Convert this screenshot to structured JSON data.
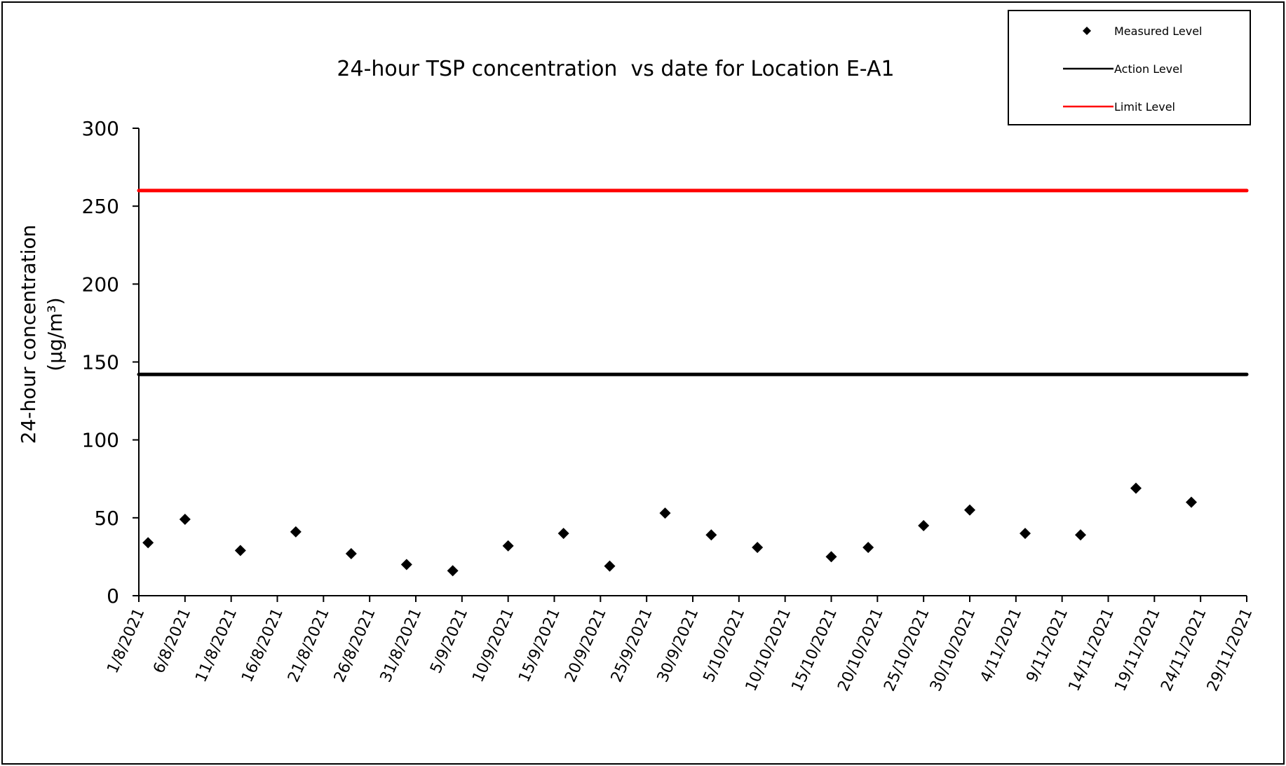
{
  "chart_data": {
    "type": "scatter",
    "title": "24-hour TSP concentration  vs date for Location E-A1",
    "ylabel": "24-hour concentration",
    "ylabel_unit": "(μg/m³)",
    "xlabel": "",
    "ylim": [
      0,
      300
    ],
    "yticks": [
      "0",
      "50",
      "100",
      "150",
      "200",
      "250",
      "300"
    ],
    "xlim": [
      "1/8/2021",
      "29/11/2021"
    ],
    "xticks": [
      "1/8/2021",
      "6/8/2021",
      "11/8/2021",
      "16/8/2021",
      "21/8/2021",
      "26/8/2021",
      "31/8/2021",
      "5/9/2021",
      "10/9/2021",
      "15/9/2021",
      "20/9/2021",
      "25/9/2021",
      "30/9/2021",
      "5/10/2021",
      "10/10/2021",
      "15/10/2021",
      "20/10/2021",
      "25/10/2021",
      "30/10/2021",
      "4/11/2021",
      "9/11/2021",
      "14/11/2021",
      "19/11/2021",
      "24/11/2021",
      "29/11/2021"
    ],
    "grid": false,
    "legend_position": "top-right",
    "series": [
      {
        "name": "Measured Level",
        "marker": "diamond",
        "color": "#000000",
        "points": [
          {
            "x": "2/8/2021",
            "y": 34
          },
          {
            "x": "6/8/2021",
            "y": 49
          },
          {
            "x": "12/8/2021",
            "y": 29
          },
          {
            "x": "18/8/2021",
            "y": 41
          },
          {
            "x": "24/8/2021",
            "y": 27
          },
          {
            "x": "30/8/2021",
            "y": 20
          },
          {
            "x": "4/9/2021",
            "y": 16
          },
          {
            "x": "10/9/2021",
            "y": 32
          },
          {
            "x": "16/9/2021",
            "y": 40
          },
          {
            "x": "21/9/2021",
            "y": 19
          },
          {
            "x": "27/9/2021",
            "y": 53
          },
          {
            "x": "2/10/2021",
            "y": 39
          },
          {
            "x": "7/10/2021",
            "y": 31
          },
          {
            "x": "15/10/2021",
            "y": 25
          },
          {
            "x": "19/10/2021",
            "y": 31
          },
          {
            "x": "25/10/2021",
            "y": 45
          },
          {
            "x": "30/10/2021",
            "y": 55
          },
          {
            "x": "5/11/2021",
            "y": 40
          },
          {
            "x": "11/11/2021",
            "y": 39
          },
          {
            "x": "17/11/2021",
            "y": 69
          },
          {
            "x": "23/11/2021",
            "y": 60
          }
        ]
      },
      {
        "name": "Action Level",
        "type": "line",
        "color": "#000000",
        "y": 142
      },
      {
        "name": "Limit Level",
        "type": "line",
        "color": "#ff0000",
        "y": 260
      }
    ]
  }
}
